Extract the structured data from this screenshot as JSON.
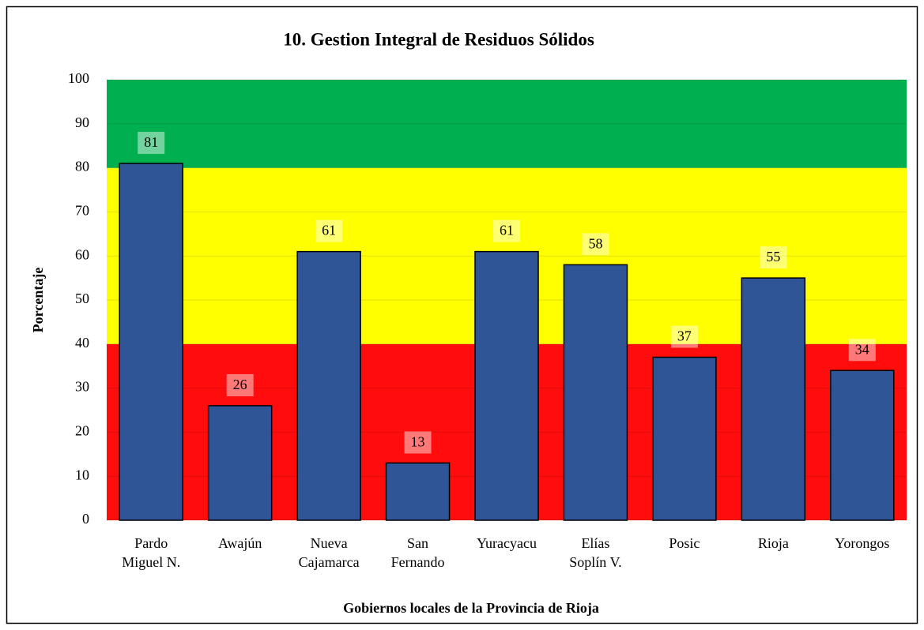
{
  "chart_data": {
    "type": "bar",
    "title": "10. Gestion Integral de Residuos Sólidos",
    "y_label": "Porcentaje",
    "x_label": "Gobiernos locales de la Provincia de Rioja",
    "categories": [
      [
        "Pardo",
        "Miguel N."
      ],
      [
        "Awajún"
      ],
      [
        "Nueva",
        "Cajamarca"
      ],
      [
        "San",
        "Fernando"
      ],
      [
        "Yuracyacu"
      ],
      [
        "Elías",
        "Soplín V."
      ],
      [
        "Posic"
      ],
      [
        "Rioja"
      ],
      [
        "Yorongos"
      ]
    ],
    "values": [
      81,
      26,
      61,
      13,
      61,
      58,
      37,
      55,
      34
    ],
    "color": "#2f5597",
    "bands": [
      {
        "from": 0,
        "to": 40,
        "color": "#ff0c0c"
      },
      {
        "from": 40,
        "to": 80,
        "color": "#ffff00"
      },
      {
        "from": 80,
        "to": 100,
        "color": "#00b050"
      }
    ],
    "ylim": [
      0,
      100
    ],
    "yticks": [
      0,
      10,
      20,
      30,
      40,
      50,
      60,
      70,
      80,
      90,
      100
    ],
    "grid": true
  }
}
